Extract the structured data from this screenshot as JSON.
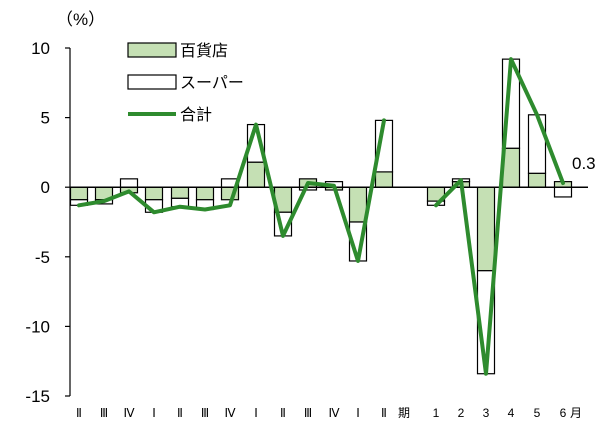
{
  "chart_data": {
    "type": "bar",
    "unit_label": "（%）",
    "ylim": [
      -15,
      10
    ],
    "yticks": [
      "10",
      "5",
      "0",
      "-5",
      "-10",
      "-15"
    ],
    "grid": false,
    "legend_position": "top-center",
    "categories": [
      "Ⅱ",
      "Ⅲ",
      "Ⅳ",
      "Ⅰ",
      "Ⅱ",
      "Ⅲ",
      "Ⅳ",
      "Ⅰ",
      "Ⅱ",
      "Ⅲ",
      "Ⅳ",
      "Ⅰ",
      "Ⅱ",
      "期",
      "1",
      "2",
      "3",
      "4",
      "5",
      "6",
      "月"
    ],
    "series": [
      {
        "name": "百貨店",
        "color": "#c5e0b4",
        "kind": "bar",
        "values": [
          -0.9,
          -0.9,
          -0.4,
          -0.9,
          -0.8,
          -0.9,
          -0.9,
          1.8,
          -1.8,
          0.6,
          -0.2,
          -2.5,
          1.1,
          null,
          -1.0,
          0.4,
          -6.0,
          2.8,
          1.0,
          0.4,
          null
        ]
      },
      {
        "name": "スーパー",
        "color": "#ffffff",
        "kind": "bar",
        "values": [
          -0.4,
          -0.3,
          0.6,
          -0.9,
          -0.6,
          -0.7,
          0.6,
          2.7,
          -1.7,
          -0.2,
          0.4,
          -2.8,
          3.7,
          null,
          -0.3,
          0.2,
          -7.4,
          6.4,
          4.2,
          -0.7,
          null
        ]
      },
      {
        "name": "合計",
        "color": "#2e8b2e",
        "kind": "line",
        "values": [
          -1.3,
          -1.0,
          -0.3,
          -1.8,
          -1.4,
          -1.6,
          -1.3,
          4.5,
          -3.5,
          0.3,
          0.1,
          -5.3,
          4.8,
          null,
          -1.3,
          0.5,
          -13.4,
          9.2,
          5.2,
          0.3,
          null
        ]
      }
    ],
    "annotations": [
      {
        "text": "0.3",
        "series": "合計",
        "index": 19
      }
    ]
  }
}
